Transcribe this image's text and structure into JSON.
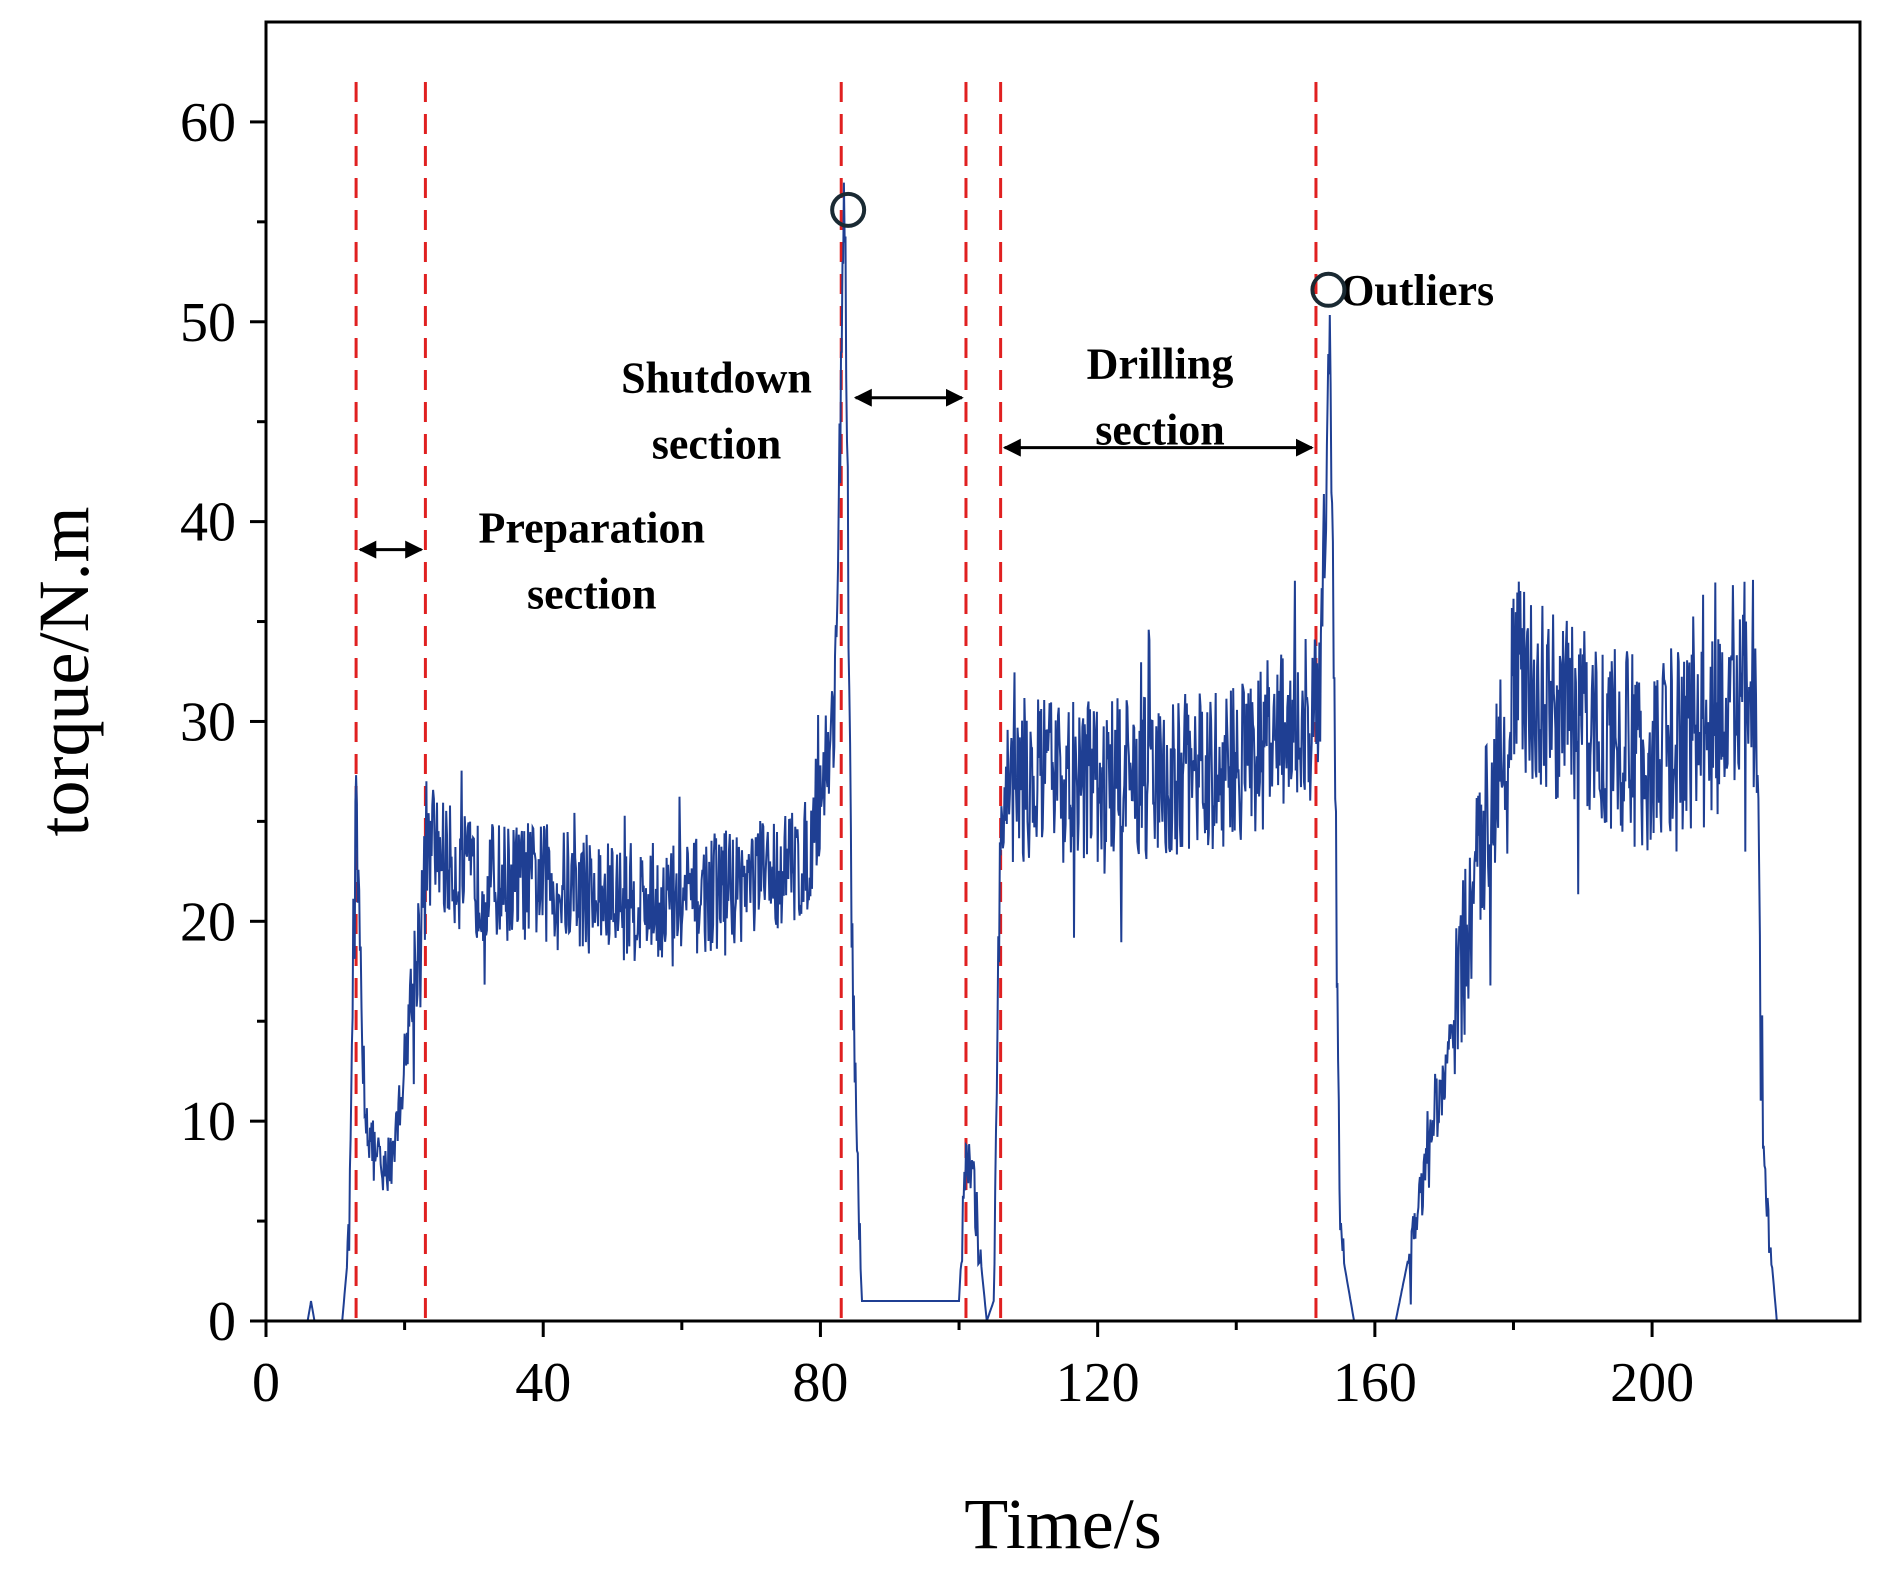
{
  "chart_data": {
    "type": "line",
    "title": "",
    "xlabel": "Time/s",
    "ylabel": "torque/N.m",
    "xlim": [
      0,
      230
    ],
    "ylim": [
      0,
      65
    ],
    "xticks": [
      0,
      40,
      80,
      120,
      160,
      200
    ],
    "yticks": [
      0,
      10,
      20,
      30,
      40,
      50,
      60
    ],
    "grid": false,
    "line_color": "#1f3f93",
    "marker_color": "#e02020",
    "series": [
      {
        "name": "torque",
        "x": [
          0,
          6,
          6.5,
          7,
          11,
          12,
          12.5,
          13,
          14,
          15,
          17,
          19,
          21,
          22.5,
          24,
          26,
          30,
          40,
          50,
          60,
          70,
          78,
          82,
          83.5,
          84.5,
          85.5,
          86,
          90,
          100,
          101,
          102,
          104,
          105,
          106,
          108,
          120,
          130,
          140,
          150,
          152,
          153.5,
          154.5,
          155,
          157,
          163,
          170,
          176,
          180,
          190,
          200,
          210,
          215,
          216,
          218,
          220
        ],
        "y": [
          0,
          0,
          1,
          0,
          0,
          4,
          18,
          25,
          12,
          9,
          7,
          10,
          16,
          21,
          24,
          23,
          22,
          22,
          21,
          21,
          22,
          23,
          30,
          56,
          20,
          5,
          1,
          1,
          1,
          8,
          7,
          0,
          1,
          26,
          27,
          27,
          27,
          28,
          30,
          30,
          51,
          20,
          4,
          0,
          0,
          12,
          25,
          32,
          30,
          28,
          30,
          31,
          8,
          0,
          0
        ]
      }
    ],
    "markers": [
      {
        "type": "vline",
        "x": 13
      },
      {
        "type": "vline",
        "x": 23
      },
      {
        "type": "vline",
        "x": 83
      },
      {
        "type": "vline",
        "x": 101
      },
      {
        "type": "vline",
        "x": 106
      },
      {
        "type": "vline",
        "x": 151.5
      }
    ],
    "outliers": [
      {
        "x": 84,
        "y": 55.6
      },
      {
        "x": 153.3,
        "y": 51.6
      }
    ],
    "annotations": [
      {
        "id": "preparation",
        "lines": [
          "Preparation",
          "section"
        ],
        "x": 47,
        "y": 39.7,
        "arrow_from": 13,
        "arrow_to": 23,
        "arrow_y": 38.6
      },
      {
        "id": "shutdown",
        "lines": [
          "Shutdown",
          "section"
        ],
        "x": 65,
        "y": 47.2,
        "arrow_from": 84.5,
        "arrow_to": 101,
        "arrow_y": 46.2
      },
      {
        "id": "drilling",
        "lines": [
          "Drilling",
          "section"
        ],
        "x": 129,
        "y": 47.9,
        "arrow_from": 106,
        "arrow_to": 151.5,
        "arrow_y": 43.7
      },
      {
        "id": "outliers",
        "lines": [
          "Outliers"
        ],
        "x": 155,
        "y": 51.6
      }
    ]
  }
}
